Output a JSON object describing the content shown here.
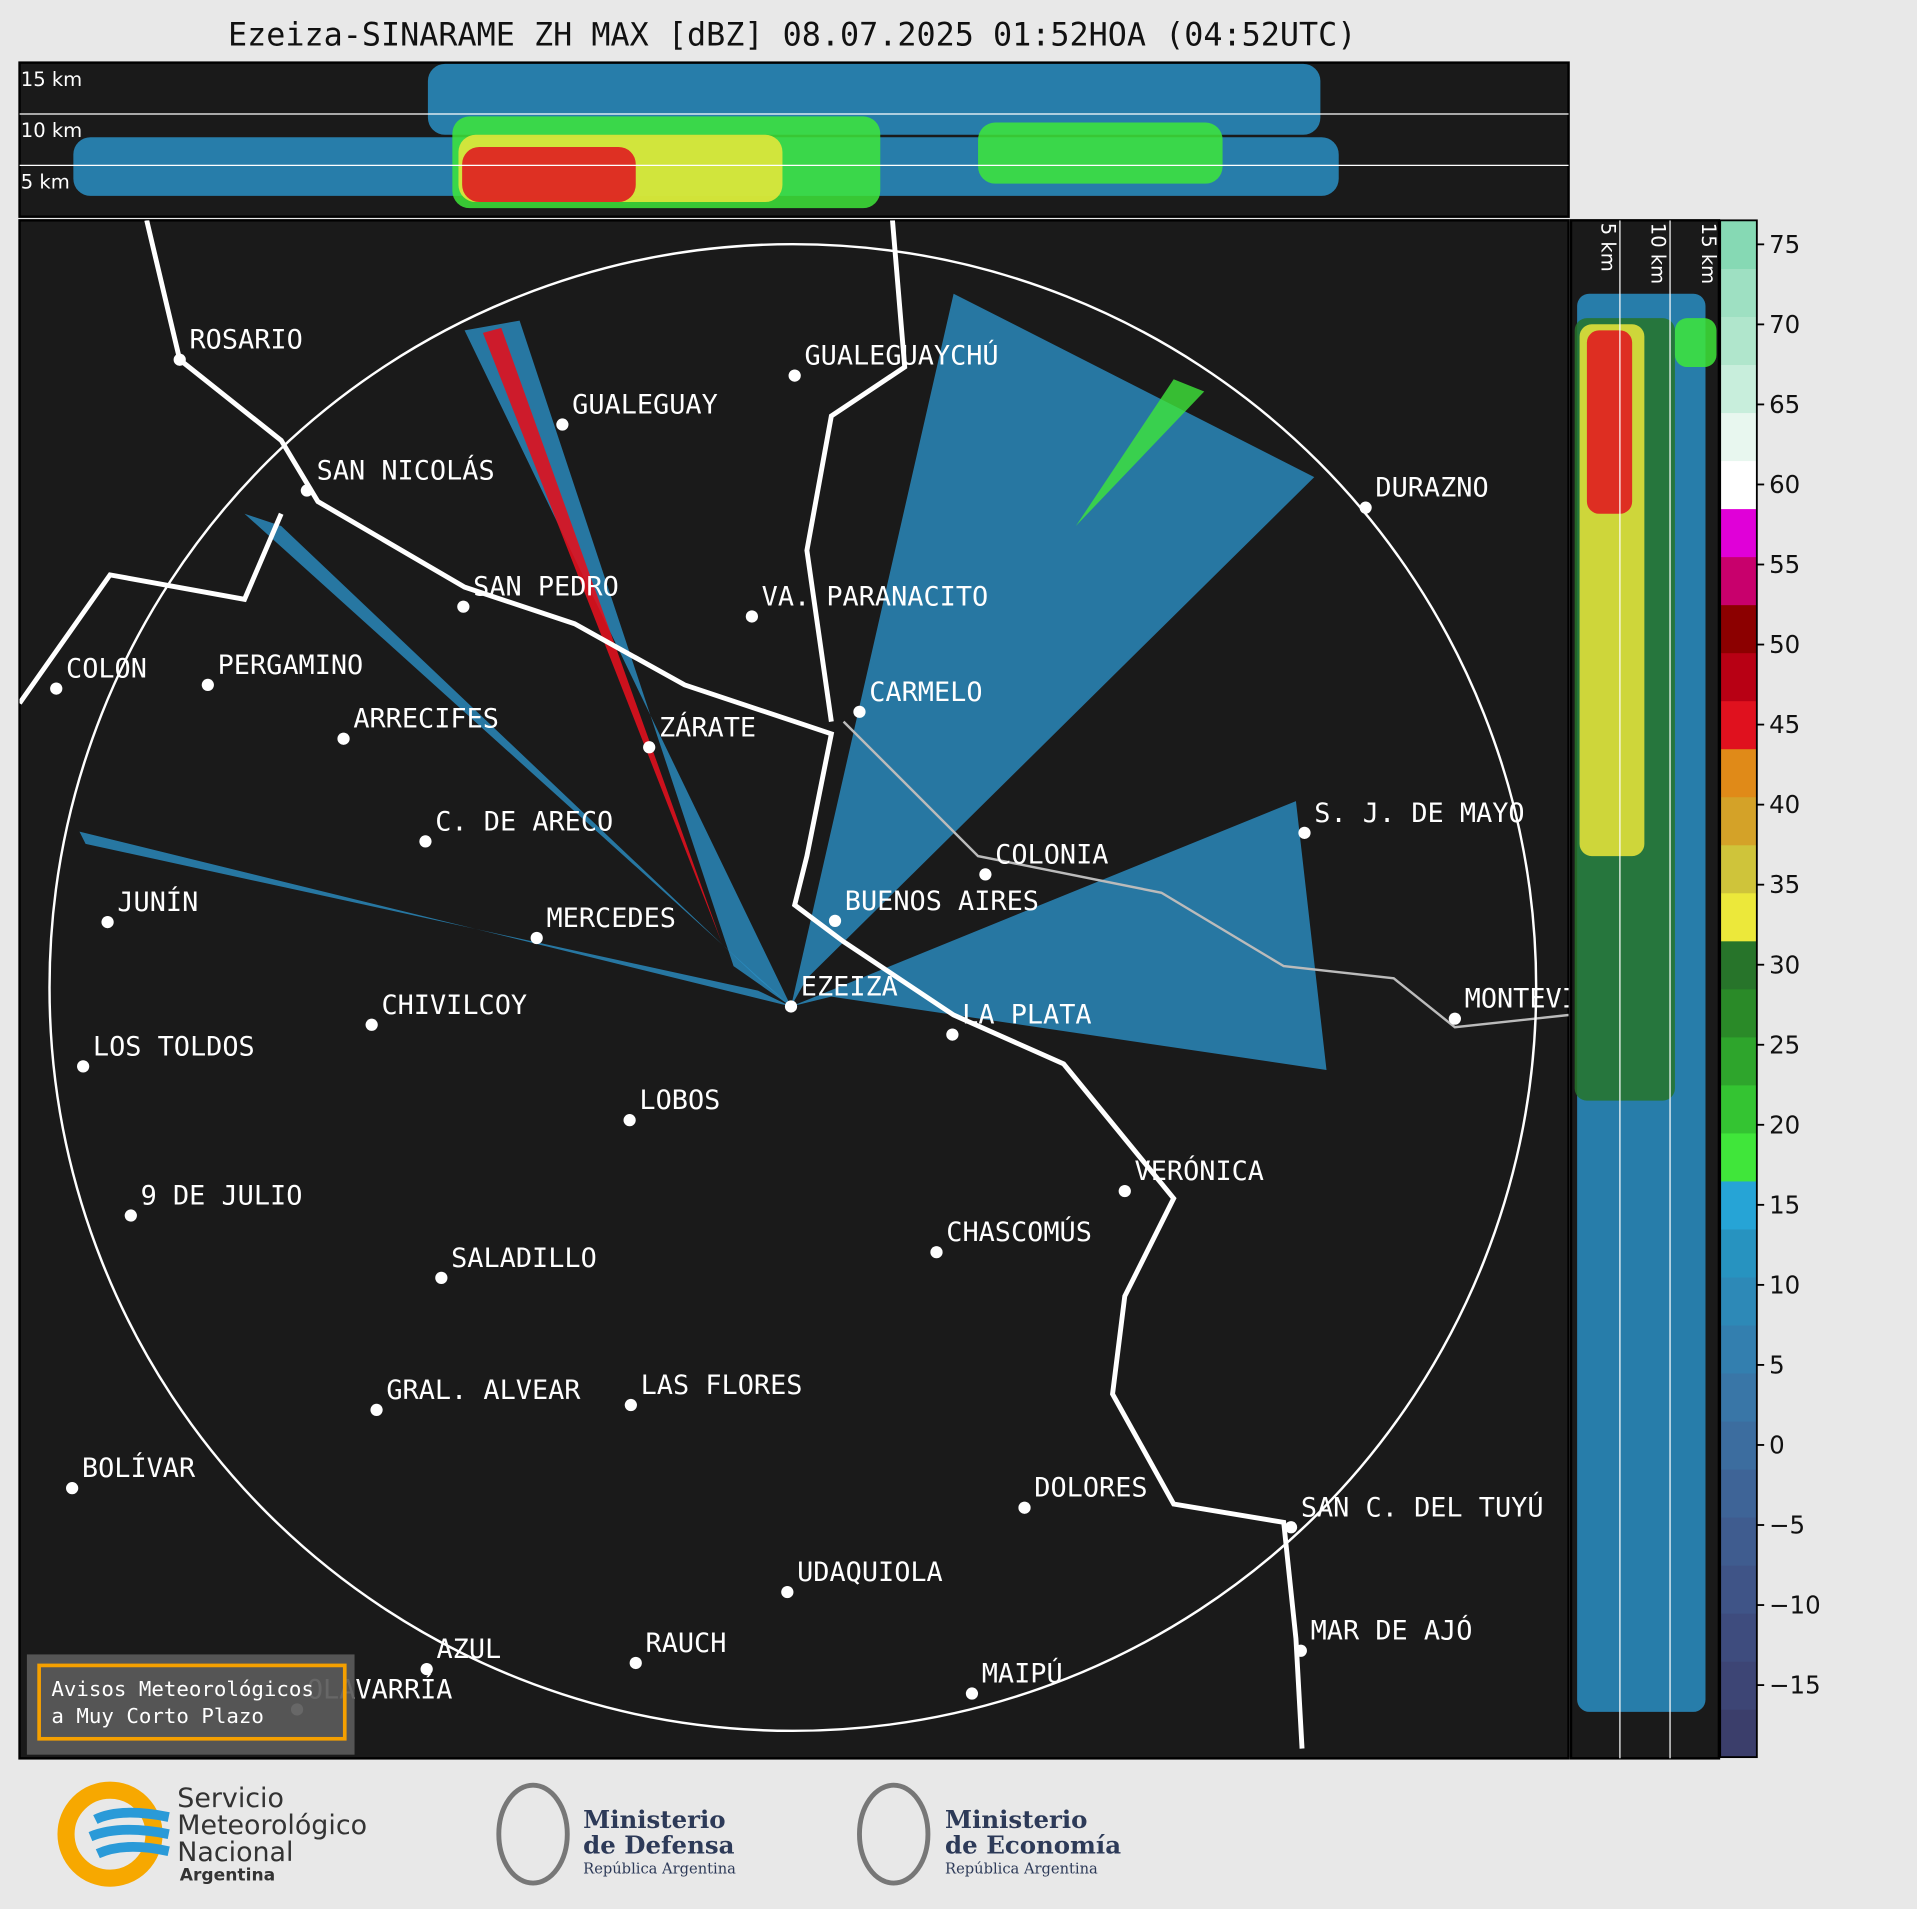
{
  "header": {
    "title": "Ezeiza-SINARAME ZH MAX [dBZ] 08.07.2025 01:52HOA (04:52UTC)"
  },
  "top_profile": {
    "heights": [
      "15 km",
      "10 km",
      "5 km"
    ]
  },
  "side_profile": {
    "heights": [
      "5 km",
      "10 km",
      "15 km"
    ]
  },
  "cities": [
    "ROSARIO",
    "GUALEGUAYCHÚ",
    "GUALEGUAY",
    "SAN NICOLÁS",
    "DURAZNO",
    "SAN PEDRO",
    "VA. PARANACITO",
    "COLON",
    "PERGAMINO",
    "CARMELO",
    "ARRECIFES",
    "ZÁRATE",
    "C. DE ARECO",
    "S. J. DE MAYO",
    "COLONIA",
    "JUNÍN",
    "BUENOS AIRES",
    "MERCEDES",
    "EZEIZA",
    "MONTEVIDEO",
    "CHIVILCOY",
    "LA PLATA",
    "LOS TOLDOS",
    "LOBOS",
    "VERÓNICA",
    "9 DE JULIO",
    "CHASCOMÚS",
    "SALADILLO",
    "GRAL. ALVEAR",
    "LAS FLORES",
    "BOLÍVAR",
    "DOLORES",
    "SAN C. DEL TUYÚ",
    "UDAQUIOLA",
    "MAR DE AJÓ",
    "RAUCH",
    "AZUL",
    "OLAVARRÍA",
    "MAIPÚ"
  ],
  "colorbar": {
    "lim": [
      -19.5,
      76.5
    ],
    "ticks": [
      75,
      70,
      65,
      60,
      55,
      50,
      45,
      40,
      35,
      30,
      25,
      20,
      15,
      10,
      5,
      0,
      {
        "value": -5,
        "label": "−5"
      },
      {
        "value": -10,
        "label": "−10"
      },
      {
        "value": -15,
        "label": "−15"
      }
    ],
    "colors": [
      "#3b3e6b",
      "#3d4575",
      "#3e4c7e",
      "#3f5487",
      "#3f5c8f",
      "#3e6497",
      "#3c6d9f",
      "#3976a7",
      "#337faf",
      "#2d89b7",
      "#2793c0",
      "#26a4d6",
      "#40e63a",
      "#34c432",
      "#2ea52c",
      "#2a8a28",
      "#27742a",
      "#ece83a",
      "#cfc43a",
      "#d4a228",
      "#e08a18",
      "#e0111e",
      "#b80014",
      "#8c0000",
      "#c8006c",
      "#e000d8",
      "#ffffff",
      "#e8f7ef",
      "#c8eedc",
      "#b0e6cc",
      "#9ee0c2",
      "#86d9b4"
    ]
  },
  "notice": {
    "lines": [
      "Avisos Meteorológicos",
      "a Muy Corto Plazo"
    ]
  },
  "logos": {
    "smn": [
      "Servicio",
      "Meteorológico",
      "Nacional",
      "Argentina"
    ],
    "defensa": [
      "Ministerio",
      "de Defensa",
      "República Argentina"
    ],
    "economia": [
      "Ministerio",
      "de Economía",
      "República Argentina"
    ]
  }
}
